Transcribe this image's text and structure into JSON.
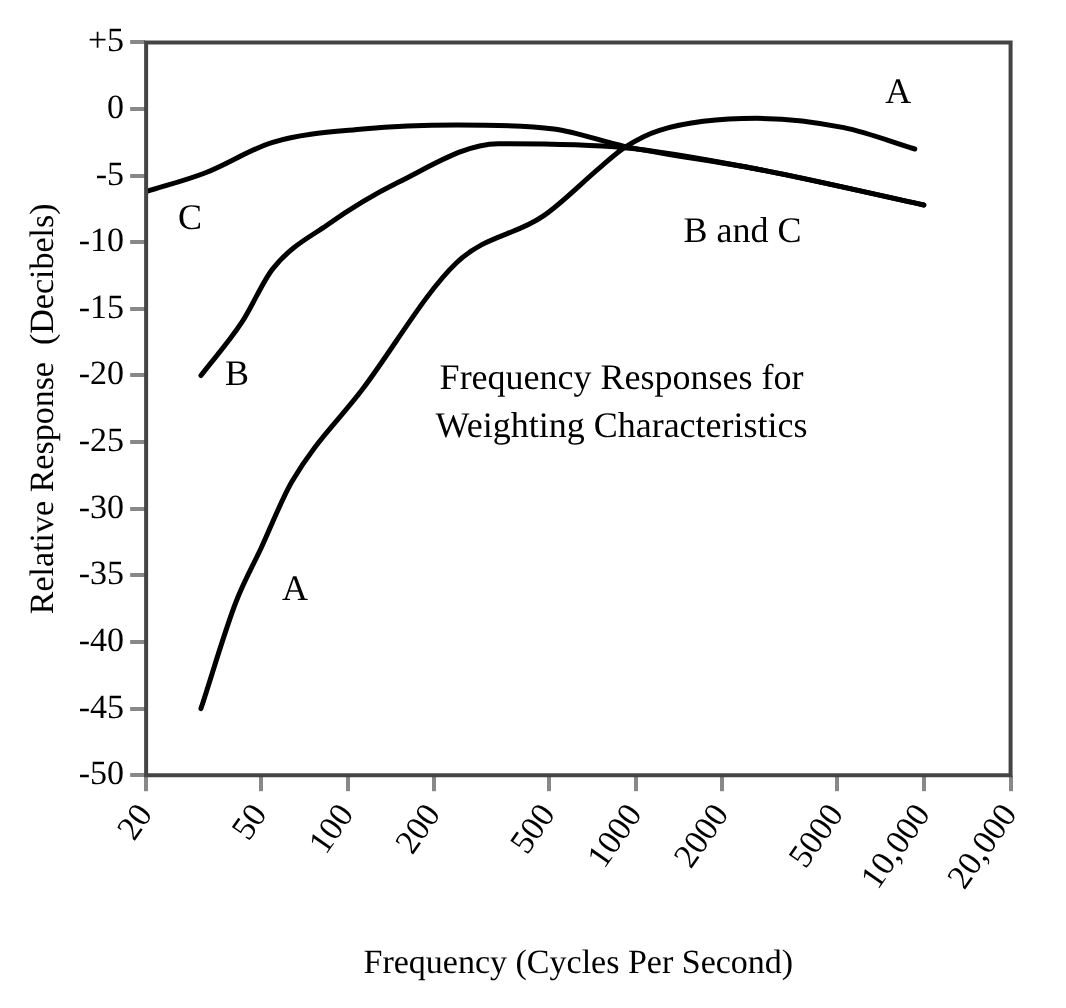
{
  "chart_data": {
    "type": "line",
    "xlabel": "Frequency (Cycles Per Second)",
    "ylabel": "Relative Response  (Decibels)",
    "log": "x",
    "xlim": [
      20,
      20000
    ],
    "xticks": [
      20,
      50,
      100,
      200,
      500,
      {
        "value": 1000,
        "label": "1000"
      },
      {
        "value": 2000,
        "label": "2000"
      },
      {
        "value": 5000,
        "label": "5000"
      },
      {
        "value": 10000,
        "label": "10,000"
      },
      {
        "value": 20000,
        "label": "20,000"
      }
    ],
    "ylim": [
      -50,
      5
    ],
    "yticks": [
      -50,
      -45,
      -40,
      -35,
      -30,
      -25,
      -20,
      -15,
      -10,
      -5,
      0,
      {
        "value": 5,
        "label": "+5"
      }
    ],
    "grid": false,
    "legend": false,
    "marker": "none",
    "line_style": "solid",
    "series": [
      {
        "name": "A",
        "color": "#000000",
        "x": [
          31,
          41,
          50,
          64,
          113,
          240,
          480,
          760,
          914,
          1210,
          2630,
          5280,
          9300
        ],
        "values": [
          -45,
          -37,
          -33,
          -28,
          -21,
          -11.5,
          -8,
          -4.3,
          -2.9,
          -1.6,
          -0.7,
          -1.4,
          -3
        ]
      },
      {
        "name": "B",
        "color": "#000000",
        "x": [
          31,
          43,
          55,
          85,
          150,
          334,
          914,
          2630,
          10000
        ],
        "values": [
          -20,
          -16,
          -12,
          -8.7,
          -5.5,
          -2.6,
          -2.9,
          -4.5,
          -7.2
        ]
      },
      {
        "name": "C",
        "color": "#000000",
        "x": [
          20,
          32,
          55,
          113,
          240,
          520,
          914,
          2630,
          10000
        ],
        "values": [
          -6.2,
          -4.8,
          -2.5,
          -1.5,
          -1.2,
          -1.5,
          -2.8,
          -4.5,
          -7.2
        ]
      }
    ],
    "annotations": [
      "A",
      "B and C",
      "Frequency Responses for\nWeighting Characteristics"
    ]
  }
}
